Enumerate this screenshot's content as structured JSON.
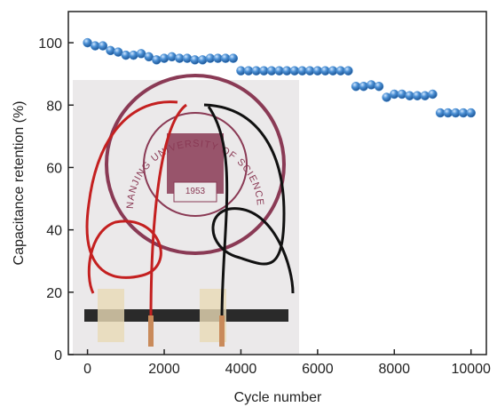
{
  "chart_data": {
    "type": "scatter",
    "x_label": "Cycle number",
    "y_label": "Capacitance retention (%)",
    "x": [
      0,
      200,
      400,
      600,
      800,
      1000,
      1200,
      1400,
      1600,
      1800,
      2000,
      2200,
      2400,
      2600,
      2800,
      3000,
      3200,
      3400,
      3600,
      3800,
      4000,
      4200,
      4400,
      4600,
      4800,
      5000,
      5200,
      5400,
      5600,
      5800,
      6000,
      6200,
      6400,
      6600,
      6800,
      7000,
      7200,
      7400,
      7600,
      7800,
      8000,
      8200,
      8400,
      8600,
      8800,
      9000,
      9200,
      9400,
      9600,
      9800,
      10000
    ],
    "values": [
      100,
      99,
      99,
      97.5,
      97,
      96,
      96,
      96.5,
      95.5,
      94.5,
      95,
      95.5,
      95,
      95,
      94.5,
      94.5,
      95,
      95,
      95,
      95,
      91,
      91,
      91,
      91,
      91,
      91,
      91,
      91,
      91,
      91,
      91,
      91,
      91,
      91,
      91,
      86,
      86,
      86.5,
      86,
      82.5,
      83.5,
      83.5,
      83,
      83,
      83,
      83.5,
      77.5,
      77.5,
      77.5,
      77.5,
      77.5
    ],
    "color": "#4a8fd4",
    "xlim": [
      -500,
      10400
    ],
    "ylim": [
      0,
      110
    ],
    "xticks": [
      0,
      2000,
      4000,
      6000,
      8000,
      10000
    ],
    "yticks": [
      0,
      20,
      40,
      60,
      80,
      100
    ],
    "inset": {
      "seal_text": "NANJING UNIVERSITY OF SCIENCE & TECHNOLOGY",
      "year": "1953"
    }
  }
}
